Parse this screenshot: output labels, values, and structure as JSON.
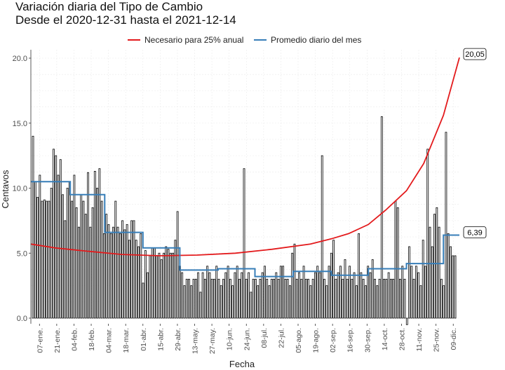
{
  "chart_data": {
    "type": "bar+line",
    "title_line1": "Variación diaria del Tipo de Cambio",
    "title_line2": "Desde el 2020-12-31 hasta el 2021-12-14",
    "xlabel": "Fecha",
    "ylabel": "Centavos",
    "ylim": [
      0,
      20
    ],
    "yticks": [
      "0.0",
      "5.0",
      "10.0",
      "15.0",
      "20.0"
    ],
    "x_start": "2020-12-31",
    "x_end": "2021-12-14",
    "xtick_labels": [
      "07-ene.",
      "21-ene.",
      "04-feb.",
      "18-feb.",
      "04-mar.",
      "18-mar.",
      "01-abr.",
      "15-abr.",
      "29-abr.",
      "13-may.",
      "27-may.",
      "10-jun.",
      "24-jun.",
      "08-jul.",
      "22-jul.",
      "05-ago.",
      "19-ago.",
      "02-sep.",
      "16-sep.",
      "30-sep.",
      "14-oct.",
      "28-oct.",
      "11-nov.",
      "25-nov.",
      "09-dic."
    ],
    "xtick_dates": [
      "2021-01-07",
      "2021-01-21",
      "2021-02-04",
      "2021-02-18",
      "2021-03-04",
      "2021-03-18",
      "2021-04-01",
      "2021-04-15",
      "2021-04-29",
      "2021-05-13",
      "2021-05-27",
      "2021-06-10",
      "2021-06-24",
      "2021-07-08",
      "2021-07-22",
      "2021-08-05",
      "2021-08-19",
      "2021-09-02",
      "2021-09-16",
      "2021-09-30",
      "2021-10-14",
      "2021-10-28",
      "2021-11-11",
      "2021-11-25",
      "2021-12-09"
    ],
    "grid": true,
    "legend_position": "top",
    "series": [
      {
        "name": "Necesario para 25% anual",
        "color": "#e31a1c",
        "type": "line",
        "points": [
          [
            "2020-12-31",
            5.7
          ],
          [
            "2021-01-20",
            5.4
          ],
          [
            "2021-02-15",
            5.15
          ],
          [
            "2021-03-15",
            4.9
          ],
          [
            "2021-04-15",
            4.8
          ],
          [
            "2021-05-15",
            4.85
          ],
          [
            "2021-06-15",
            5.0
          ],
          [
            "2021-07-15",
            5.3
          ],
          [
            "2021-08-15",
            5.7
          ],
          [
            "2021-09-01",
            6.1
          ],
          [
            "2021-09-15",
            6.5
          ],
          [
            "2021-10-01",
            7.2
          ],
          [
            "2021-10-15",
            8.3
          ],
          [
            "2021-11-01",
            9.8
          ],
          [
            "2021-11-15",
            11.9
          ],
          [
            "2021-12-01",
            15.6
          ],
          [
            "2021-12-14",
            20.05
          ]
        ],
        "end_label": "20,05"
      },
      {
        "name": "Promedio diario del mes",
        "color": "#377eb8",
        "type": "step",
        "points": [
          [
            "2020-12-31",
            10.5
          ],
          [
            "2021-01-31",
            10.5
          ],
          [
            "2021-02-01",
            9.5
          ],
          [
            "2021-02-28",
            9.5
          ],
          [
            "2021-03-01",
            6.6
          ],
          [
            "2021-03-31",
            6.6
          ],
          [
            "2021-04-01",
            5.4
          ],
          [
            "2021-04-30",
            5.4
          ],
          [
            "2021-05-01",
            3.7
          ],
          [
            "2021-05-31",
            3.7
          ],
          [
            "2021-06-01",
            3.8
          ],
          [
            "2021-06-30",
            3.8
          ],
          [
            "2021-07-01",
            3.2
          ],
          [
            "2021-07-31",
            3.2
          ],
          [
            "2021-08-01",
            3.6
          ],
          [
            "2021-08-31",
            3.6
          ],
          [
            "2021-09-01",
            3.3
          ],
          [
            "2021-09-30",
            3.3
          ],
          [
            "2021-10-01",
            3.8
          ],
          [
            "2021-10-31",
            3.8
          ],
          [
            "2021-11-01",
            4.2
          ],
          [
            "2021-11-30",
            4.2
          ],
          [
            "2021-12-01",
            6.39
          ],
          [
            "2021-12-14",
            6.39
          ]
        ],
        "end_label": "6,39"
      },
      {
        "name": "Variación diaria",
        "color": "#000000",
        "type": "bar",
        "values": [
          14.0,
          10.5,
          9.3,
          11.0,
          9.0,
          9.1,
          9.0,
          9.0,
          10.0,
          13.0,
          12.5,
          11.0,
          12.2,
          9.5,
          7.5,
          10.0,
          10.5,
          9.0,
          11.0,
          8.5,
          7.0,
          9.5,
          9.0,
          8.0,
          11.2,
          7.0,
          8.5,
          11.3,
          10.0,
          11.5,
          9.0,
          6.5,
          8.0,
          7.2,
          6.5,
          7.0,
          9.0,
          7.0,
          6.5,
          7.5,
          6.8,
          7.2,
          6.0,
          7.5,
          7.5,
          6.0,
          5.5,
          6.5,
          2.7,
          5.2,
          3.5,
          4.8,
          5.4,
          5.4,
          4.8,
          5.0,
          4.5,
          5.0,
          5.5,
          5.3,
          5.0,
          5.0,
          6.0,
          8.2,
          4.0,
          3.5,
          2.5,
          3.0,
          3.0,
          2.5,
          3.0,
          3.0,
          3.5,
          2.0,
          3.5,
          3.0,
          4.0,
          3.5,
          3.0,
          3.0,
          4.0,
          3.0,
          2.5,
          3.0,
          3.5,
          4.0,
          3.0,
          2.5,
          3.5,
          4.0,
          3.0,
          3.5,
          11.5,
          3.0,
          3.5,
          2.0,
          3.0,
          3.0,
          2.5,
          3.0,
          3.5,
          4.0,
          3.0,
          2.5,
          3.0,
          3.0,
          3.5,
          3.0,
          4.0,
          4.0,
          3.0,
          3.0,
          2.5,
          5.0,
          5.7,
          3.0,
          3.5,
          3.0,
          4.0,
          3.0,
          3.0,
          2.5,
          3.0,
          3.5,
          4.0,
          3.5,
          12.5,
          3.0,
          2.5,
          4.0,
          5.0,
          6.0,
          3.0,
          3.5,
          4.0,
          3.0,
          4.5,
          3.0,
          4.0,
          3.0,
          3.5,
          2.5,
          6.5,
          3.5,
          3.0,
          2.5,
          4.0,
          3.5,
          4.5,
          3.0,
          2.5,
          3.0,
          15.5,
          3.0,
          3.0,
          3.5,
          3.0,
          3.0,
          9.0,
          8.5,
          3.0,
          4.0,
          3.0,
          -0.5,
          5.5,
          4.0,
          3.0,
          4.0,
          3.5,
          2.5,
          6.0,
          4.0,
          13.0,
          7.0,
          5.5,
          8.0,
          8.5,
          7.0,
          3.0,
          2.5,
          14.3,
          6.5,
          5.5,
          4.8,
          4.8
        ]
      }
    ]
  }
}
